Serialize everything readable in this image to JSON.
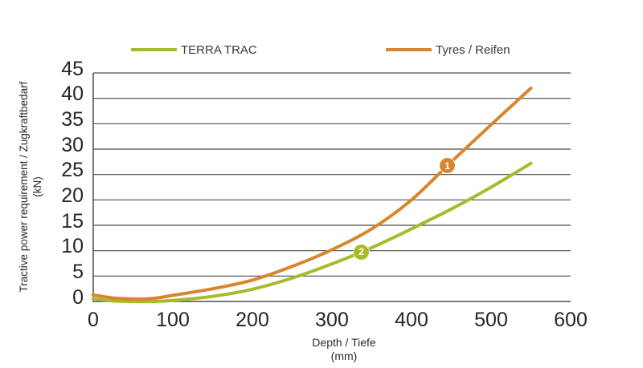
{
  "chart_data": {
    "type": "line",
    "xlabel": "Depth / Tiefe",
    "xlabel_unit": "(mm)",
    "ylabel": "Tractive power requirement / Zugkraftbedarf",
    "ylabel_unit": "(kN)",
    "xlim": [
      0,
      600
    ],
    "ylim": [
      0,
      45
    ],
    "x_ticks": [
      0,
      100,
      200,
      300,
      400,
      500,
      600
    ],
    "y_ticks": [
      0,
      5,
      10,
      15,
      20,
      25,
      30,
      35,
      40,
      45
    ],
    "grid": "horizontal",
    "legend_position": "top",
    "axis_color": "#4b4b4b",
    "x": [
      0,
      25,
      50,
      75,
      100,
      150,
      200,
      250,
      300,
      350,
      400,
      450,
      500,
      550
    ],
    "series": [
      {
        "name": "TERRA TRAC",
        "color": "#a9ba2c",
        "values": [
          0.6,
          0.1,
          0.0,
          0.0,
          0.2,
          1.0,
          2.4,
          4.6,
          7.4,
          10.6,
          14.3,
          18.2,
          22.5,
          27.2
        ]
      },
      {
        "name": "Tyres / Reifen",
        "color": "#d8862e",
        "values": [
          1.3,
          0.7,
          0.5,
          0.6,
          1.2,
          2.5,
          4.2,
          6.9,
          10.2,
          14.3,
          20.0,
          27.5,
          34.8,
          42.0
        ]
      }
    ],
    "markers": [
      {
        "label": "1",
        "series": "Tyres / Reifen",
        "x_mm": 445,
        "y_kn": 27
      },
      {
        "label": "2",
        "series": "TERRA TRAC",
        "x_mm": 337,
        "y_kn": 10
      }
    ]
  }
}
